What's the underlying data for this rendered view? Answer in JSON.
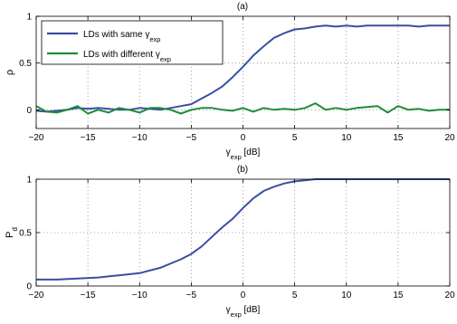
{
  "chart_data": [
    {
      "type": "line",
      "panel_label": "(a)",
      "xlabel_main": "γ",
      "xlabel_sub": "exp",
      "xlabel_unit": " [dB]",
      "ylabel": "ρ",
      "xlim": [
        -20,
        20
      ],
      "ylim": [
        -0.2,
        1
      ],
      "xticks": [
        -20,
        -15,
        -10,
        -5,
        0,
        5,
        10,
        15,
        20
      ],
      "yticks": [
        0,
        0.5,
        1
      ],
      "xtick_labels": [
        "−20",
        "−15",
        "−10",
        "−5",
        "0",
        "5",
        "10",
        "15",
        "20"
      ],
      "ytick_labels": [
        "0",
        "0.5",
        "1"
      ],
      "grid": true,
      "legend_position": "top-left",
      "series": [
        {
          "name_main": "LDs with same γ",
          "name_sub": "exp",
          "color": "#3a4fa3",
          "x": [
            -20,
            -19,
            -18,
            -17,
            -16,
            -15,
            -14,
            -13,
            -12,
            -11,
            -10,
            -9,
            -8,
            -7,
            -6,
            -5,
            -4,
            -3,
            -2,
            -1,
            0,
            1,
            2,
            3,
            4,
            5,
            6,
            7,
            8,
            9,
            10,
            11,
            12,
            13,
            14,
            15,
            16,
            17,
            18,
            19,
            20
          ],
          "y": [
            -0.01,
            -0.02,
            -0.01,
            0.0,
            0.02,
            0.01,
            0.02,
            0.01,
            0.0,
            0.0,
            0.02,
            0.01,
            0.0,
            0.02,
            0.04,
            0.06,
            0.12,
            0.18,
            0.25,
            0.35,
            0.46,
            0.58,
            0.68,
            0.77,
            0.82,
            0.86,
            0.87,
            0.89,
            0.9,
            0.89,
            0.9,
            0.89,
            0.9,
            0.9,
            0.9,
            0.9,
            0.9,
            0.89,
            0.9,
            0.9,
            0.9
          ]
        },
        {
          "name_main": "LDs with different γ",
          "name_sub": "exp",
          "color": "#1f8c3b",
          "x": [
            -20,
            -19,
            -18,
            -17,
            -16,
            -15,
            -14,
            -13,
            -12,
            -11,
            -10,
            -9,
            -8,
            -7,
            -6,
            -5,
            -4,
            -3,
            -2,
            -1,
            0,
            1,
            2,
            3,
            4,
            5,
            6,
            7,
            8,
            9,
            10,
            11,
            12,
            13,
            14,
            15,
            16,
            17,
            18,
            19,
            20
          ],
          "y": [
            0.04,
            -0.02,
            -0.03,
            0.0,
            0.04,
            -0.04,
            0.0,
            -0.03,
            0.02,
            0.0,
            -0.03,
            0.02,
            0.02,
            0.0,
            -0.04,
            0.0,
            0.02,
            0.02,
            0.0,
            -0.01,
            0.02,
            -0.02,
            0.02,
            0.0,
            0.01,
            0.0,
            0.02,
            0.07,
            0.0,
            0.02,
            0.0,
            0.02,
            0.03,
            0.04,
            -0.03,
            0.04,
            0.0,
            0.01,
            -0.01,
            0.0,
            0.0
          ]
        }
      ]
    },
    {
      "type": "line",
      "panel_label": "(b)",
      "xlabel_main": "γ",
      "xlabel_sub": "exp",
      "xlabel_unit": " [dB]",
      "ylabel_main": "P",
      "ylabel_sub": "d",
      "xlim": [
        -20,
        20
      ],
      "ylim": [
        0,
        1
      ],
      "xticks": [
        -20,
        -15,
        -10,
        -5,
        0,
        5,
        10,
        15,
        20
      ],
      "yticks": [
        0,
        0.5,
        1
      ],
      "xtick_labels": [
        "−20",
        "−15",
        "−10",
        "−5",
        "0",
        "5",
        "10",
        "15",
        "20"
      ],
      "ytick_labels": [
        "0",
        "0.5",
        "1"
      ],
      "grid": true,
      "series": [
        {
          "color": "#3a4fa3",
          "x": [
            -20,
            -18,
            -16,
            -14,
            -12,
            -10,
            -8,
            -6,
            -5,
            -4,
            -3,
            -2,
            -1,
            0,
            1,
            2,
            3,
            4,
            5,
            6,
            7,
            8,
            10,
            12,
            14,
            16,
            18,
            20
          ],
          "y": [
            0.06,
            0.06,
            0.07,
            0.08,
            0.1,
            0.12,
            0.17,
            0.25,
            0.3,
            0.37,
            0.46,
            0.55,
            0.63,
            0.73,
            0.82,
            0.89,
            0.93,
            0.96,
            0.98,
            0.99,
            1.0,
            1.0,
            1.0,
            1.0,
            1.0,
            1.0,
            1.0,
            1.0
          ]
        }
      ]
    }
  ]
}
